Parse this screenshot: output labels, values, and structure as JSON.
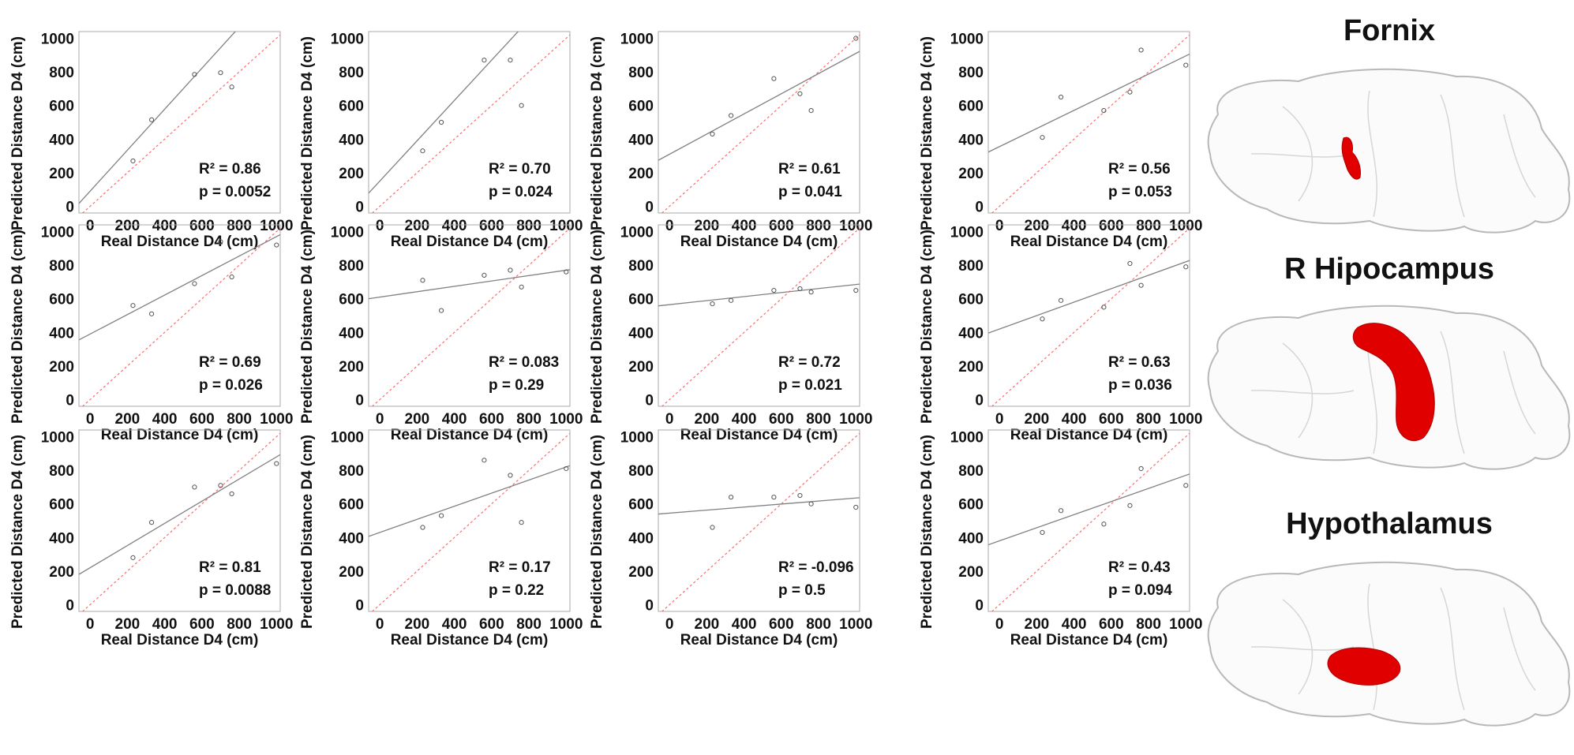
{
  "region_titles": [
    "Fornix",
    "R Hipocampus",
    "Hypothalamus"
  ],
  "brain_icons": [
    "brain-fornix",
    "brain-hippocampus",
    "brain-hypothalamus"
  ],
  "colors": {
    "regression_line": "#808080",
    "identity_line": "#ff6b6b",
    "highlight": "#e00000",
    "brain_outline": "#b8b8b8"
  },
  "chart_data": [
    {
      "type": "scatter",
      "row": 0,
      "col": 0,
      "xlabel": "Real Distance D4 (cm)",
      "ylabel": "Predicted Distance D4 (cm)",
      "xlim": [
        -60,
        1020
      ],
      "ylim": [
        -40,
        1040
      ],
      "xticks": [
        0,
        200,
        400,
        600,
        800,
        1000
      ],
      "yticks": [
        0,
        200,
        400,
        600,
        800,
        1000
      ],
      "points": [
        [
          230,
          270
        ],
        [
          330,
          515
        ],
        [
          560,
          785
        ],
        [
          700,
          795
        ],
        [
          760,
          710
        ]
      ],
      "fit": {
        "intercept": 90,
        "slope": 1.22
      },
      "stats": {
        "r2": "R² = 0.86",
        "p": "p = 0.0052"
      }
    },
    {
      "type": "scatter",
      "row": 0,
      "col": 1,
      "xlabel": "Real Distance D4 (cm)",
      "ylabel": "Predicted Distance D4 (cm)",
      "xlim": [
        -60,
        1020
      ],
      "ylim": [
        -40,
        1040
      ],
      "xticks": [
        0,
        200,
        400,
        600,
        800,
        1000
      ],
      "yticks": [
        0,
        200,
        400,
        600,
        800,
        1000
      ],
      "points": [
        [
          230,
          330
        ],
        [
          330,
          500
        ],
        [
          560,
          870
        ],
        [
          700,
          870
        ],
        [
          760,
          600
        ]
      ],
      "fit": {
        "intercept": 150,
        "slope": 1.2
      },
      "stats": {
        "r2": "R² = 0.70",
        "p": "p = 0.024"
      }
    },
    {
      "type": "scatter",
      "row": 0,
      "col": 2,
      "xlabel": "Real Distance D4 (cm)",
      "ylabel": "Predicted Distance D4 (cm)",
      "xlim": [
        -60,
        1020
      ],
      "ylim": [
        -40,
        1040
      ],
      "xticks": [
        0,
        200,
        400,
        600,
        800,
        1000
      ],
      "yticks": [
        0,
        200,
        400,
        600,
        800,
        1000
      ],
      "points": [
        [
          230,
          430
        ],
        [
          330,
          540
        ],
        [
          560,
          760
        ],
        [
          700,
          670
        ],
        [
          760,
          570
        ],
        [
          1000,
          1000
        ]
      ],
      "fit": {
        "intercept": 310,
        "slope": 0.6
      },
      "stats": {
        "r2": "R² = 0.61",
        "p": "p = 0.041"
      }
    },
    {
      "type": "scatter",
      "row": 0,
      "col": 3,
      "xlabel": "Real Distance D4 (cm)",
      "ylabel": "Predicted Distance D4 (cm)",
      "xlim": [
        -60,
        1020
      ],
      "ylim": [
        -40,
        1040
      ],
      "xticks": [
        0,
        200,
        400,
        600,
        800,
        1000
      ],
      "yticks": [
        0,
        200,
        400,
        600,
        800,
        1000
      ],
      "points": [
        [
          230,
          410
        ],
        [
          330,
          650
        ],
        [
          560,
          570
        ],
        [
          700,
          680
        ],
        [
          760,
          930
        ],
        [
          1000,
          840
        ]
      ],
      "fit": {
        "intercept": 355,
        "slope": 0.54
      },
      "stats": {
        "r2": "R² = 0.56",
        "p": "p = 0.053"
      }
    },
    {
      "type": "scatter",
      "row": 1,
      "col": 0,
      "xlabel": "Real Distance D4 (cm)",
      "ylabel": "Predicted Distance D4 (cm)",
      "xlim": [
        -60,
        1020
      ],
      "ylim": [
        -40,
        1040
      ],
      "xticks": [
        0,
        200,
        400,
        600,
        800,
        1000
      ],
      "yticks": [
        0,
        200,
        400,
        600,
        800,
        1000
      ],
      "points": [
        [
          230,
          560
        ],
        [
          330,
          510
        ],
        [
          560,
          690
        ],
        [
          700,
          940
        ],
        [
          760,
          730
        ],
        [
          1000,
          920
        ]
      ],
      "fit": {
        "intercept": 390,
        "slope": 0.58
      },
      "stats": {
        "r2": "R² = 0.69",
        "p": "p = 0.026"
      }
    },
    {
      "type": "scatter",
      "row": 1,
      "col": 1,
      "xlabel": "Real Distance D4 (cm)",
      "ylabel": "Predicted Distance D4 (cm)",
      "xlim": [
        -60,
        1020
      ],
      "ylim": [
        -40,
        1040
      ],
      "xticks": [
        0,
        200,
        400,
        600,
        800,
        1000
      ],
      "yticks": [
        0,
        200,
        400,
        600,
        800,
        1000
      ],
      "points": [
        [
          230,
          710
        ],
        [
          330,
          530
        ],
        [
          560,
          740
        ],
        [
          700,
          770
        ],
        [
          760,
          670
        ],
        [
          1000,
          760
        ]
      ],
      "fit": {
        "intercept": 610,
        "slope": 0.16
      },
      "stats": {
        "r2": "R² = 0.083",
        "p": "p = 0.29"
      }
    },
    {
      "type": "scatter",
      "row": 1,
      "col": 2,
      "xlabel": "Real Distance D4 (cm)",
      "ylabel": "Predicted Distance D4 (cm)",
      "xlim": [
        -60,
        1020
      ],
      "ylim": [
        -40,
        1040
      ],
      "xticks": [
        0,
        200,
        400,
        600,
        800,
        1000
      ],
      "yticks": [
        0,
        200,
        400,
        600,
        800,
        1000
      ],
      "points": [
        [
          230,
          570
        ],
        [
          330,
          590
        ],
        [
          560,
          650
        ],
        [
          700,
          660
        ],
        [
          760,
          640
        ],
        [
          1000,
          650
        ]
      ],
      "fit": {
        "intercept": 565,
        "slope": 0.12
      },
      "stats": {
        "r2": "R² = 0.72",
        "p": "p = 0.021"
      }
    },
    {
      "type": "scatter",
      "row": 1,
      "col": 3,
      "xlabel": "Real Distance D4 (cm)",
      "ylabel": "Predicted Distance D4 (cm)",
      "xlim": [
        -60,
        1020
      ],
      "ylim": [
        -40,
        1040
      ],
      "xticks": [
        0,
        200,
        400,
        600,
        800,
        1000
      ],
      "yticks": [
        0,
        200,
        400,
        600,
        800,
        1000
      ],
      "points": [
        [
          230,
          480
        ],
        [
          330,
          590
        ],
        [
          560,
          550
        ],
        [
          700,
          810
        ],
        [
          760,
          680
        ],
        [
          1000,
          790
        ]
      ],
      "fit": {
        "intercept": 420,
        "slope": 0.4
      },
      "stats": {
        "r2": "R² = 0.63",
        "p": "p = 0.036"
      }
    },
    {
      "type": "scatter",
      "row": 2,
      "col": 0,
      "xlabel": "Real Distance D4 (cm)",
      "ylabel": "Predicted Distance D4 (cm)",
      "xlim": [
        -60,
        1020
      ],
      "ylim": [
        -40,
        1040
      ],
      "xticks": [
        0,
        200,
        400,
        600,
        800,
        1000
      ],
      "yticks": [
        0,
        200,
        400,
        600,
        800,
        1000
      ],
      "points": [
        [
          230,
          280
        ],
        [
          330,
          490
        ],
        [
          560,
          700
        ],
        [
          700,
          710
        ],
        [
          760,
          660
        ],
        [
          1000,
          840
        ]
      ],
      "fit": {
        "intercept": 220,
        "slope": 0.66
      },
      "stats": {
        "r2": "R² = 0.81",
        "p": "p = 0.0088"
      }
    },
    {
      "type": "scatter",
      "row": 2,
      "col": 1,
      "xlabel": "Real Distance D4 (cm)",
      "ylabel": "Predicted Distance D4 (cm)",
      "xlim": [
        -60,
        1020
      ],
      "ylim": [
        -40,
        1040
      ],
      "xticks": [
        0,
        200,
        400,
        600,
        800,
        1000
      ],
      "yticks": [
        0,
        200,
        400,
        600,
        800,
        1000
      ],
      "points": [
        [
          230,
          460
        ],
        [
          330,
          530
        ],
        [
          560,
          860
        ],
        [
          700,
          770
        ],
        [
          760,
          490
        ],
        [
          1000,
          810
        ]
      ],
      "fit": {
        "intercept": 430,
        "slope": 0.39
      },
      "stats": {
        "r2": "R² = 0.17",
        "p": "p = 0.22"
      }
    },
    {
      "type": "scatter",
      "row": 2,
      "col": 2,
      "xlabel": "Real Distance D4 (cm)",
      "ylabel": "Predicted Distance D4 (cm)",
      "xlim": [
        -60,
        1020
      ],
      "ylim": [
        -40,
        1040
      ],
      "xticks": [
        0,
        200,
        400,
        600,
        800,
        1000
      ],
      "yticks": [
        0,
        200,
        400,
        600,
        800,
        1000
      ],
      "points": [
        [
          230,
          460
        ],
        [
          330,
          640
        ],
        [
          560,
          640
        ],
        [
          700,
          650
        ],
        [
          760,
          600
        ],
        [
          1000,
          580
        ]
      ],
      "fit": {
        "intercept": 545,
        "slope": 0.09
      },
      "stats": {
        "r2": "R² = -0.096",
        "p": "p = 0.5"
      }
    },
    {
      "type": "scatter",
      "row": 2,
      "col": 3,
      "xlabel": "Real Distance D4 (cm)",
      "ylabel": "Predicted Distance D4 (cm)",
      "xlim": [
        -60,
        1020
      ],
      "ylim": [
        -40,
        1040
      ],
      "xticks": [
        0,
        200,
        400,
        600,
        800,
        1000
      ],
      "yticks": [
        0,
        200,
        400,
        600,
        800,
        1000
      ],
      "points": [
        [
          230,
          430
        ],
        [
          330,
          560
        ],
        [
          560,
          480
        ],
        [
          700,
          590
        ],
        [
          760,
          810
        ],
        [
          1000,
          710
        ]
      ],
      "fit": {
        "intercept": 380,
        "slope": 0.39
      },
      "stats": {
        "r2": "R² = 0.43",
        "p": "p = 0.094"
      }
    }
  ]
}
